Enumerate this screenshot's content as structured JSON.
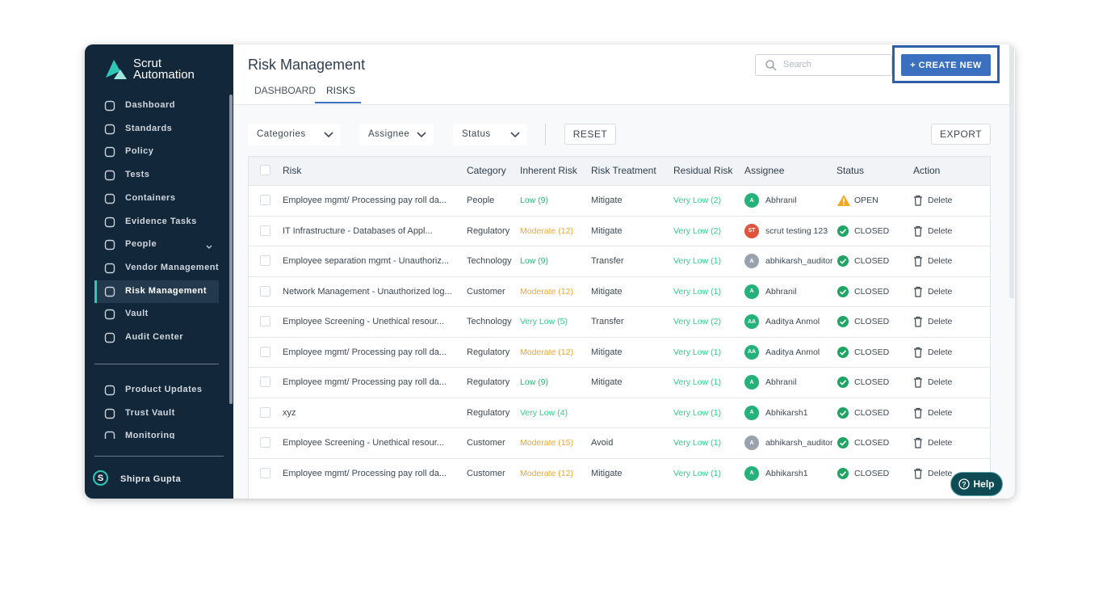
{
  "sidebar": {
    "brand": [
      "Scrut",
      "Automation"
    ],
    "nav": [
      "Dashboard",
      "Standards",
      "Policy",
      "Tests",
      "Containers",
      "Evidence Tasks",
      "People",
      "Vendor Management",
      "Risk Management",
      "Vault",
      "Audit Center"
    ],
    "active": 8,
    "nav_secondary": [
      "Product Updates",
      "Trust Vault",
      "Monitoring"
    ],
    "user": {
      "initial": "S",
      "name": "Shipra Gupta"
    }
  },
  "header": {
    "title": "Risk Management",
    "search_placeholder": "Search",
    "create_button": "+ CREATE NEW",
    "tabs": [
      "DASHBOARD",
      "RISKS"
    ],
    "active_tab": 1
  },
  "filters": {
    "dropdowns": [
      "Categories",
      "Assignee",
      "Status"
    ],
    "reset": "RESET",
    "export": "EXPORT"
  },
  "table": {
    "columns": [
      "Risk",
      "Category",
      "Inherent Risk",
      "Risk Treatment",
      "Residual Risk",
      "Assignee",
      "Status",
      "Action"
    ],
    "rows": [
      {
        "risk": "Employee mgmt/ Processing pay roll da...",
        "category": "People",
        "inherent": "Low (9)",
        "inherent_color": "#2bb673",
        "treatment": "Mitigate",
        "residual": "Very Low (2)",
        "residual_color": "#2bd18a",
        "avatar": "A",
        "avatar_color": "#25b17a",
        "assignee": "Abhranil",
        "status": "OPEN",
        "status_icon": "warning",
        "action": "Delete"
      },
      {
        "risk": "IT Infrastructure - Databases of Appl...",
        "category": "Regulatory",
        "inherent": "Moderate (12)",
        "inherent_color": "#f5a623",
        "treatment": "Mitigate",
        "residual": "Very Low (2)",
        "residual_color": "#2bd18a",
        "avatar": "ST",
        "avatar_color": "#e0533d",
        "assignee": "scrut testing 123",
        "status": "CLOSED",
        "status_icon": "check",
        "action": "Delete"
      },
      {
        "risk": "Employee separation mgmt - Unauthoriz...",
        "category": "Technology",
        "inherent": "Low (9)",
        "inherent_color": "#2bb673",
        "treatment": "Transfer",
        "residual": "Very Low (1)",
        "residual_color": "#2bd18a",
        "avatar": "A",
        "avatar_color": "#9aa3ad",
        "assignee": "abhikarsh_auditor",
        "status": "CLOSED",
        "status_icon": "check",
        "action": "Delete"
      },
      {
        "risk": "Network Management - Unauthorized log...",
        "category": "Customer",
        "inherent": "Moderate (12)",
        "inherent_color": "#f5a623",
        "treatment": "Mitigate",
        "residual": "Very Low (1)",
        "residual_color": "#2bd18a",
        "avatar": "A",
        "avatar_color": "#25b17a",
        "assignee": "Abhranil",
        "status": "CLOSED",
        "status_icon": "check",
        "action": "Delete"
      },
      {
        "risk": "Employee Screening - Unethical resour...",
        "category": "Technology",
        "inherent": "Very Low (5)",
        "inherent_color": "#2bd18a",
        "treatment": "Transfer",
        "residual": "Very Low (2)",
        "residual_color": "#2bd18a",
        "avatar": "AA",
        "avatar_color": "#25b17a",
        "assignee": "Aaditya Anmol",
        "status": "CLOSED",
        "status_icon": "check",
        "action": "Delete"
      },
      {
        "risk": "Employee mgmt/ Processing pay roll da...",
        "category": "Regulatory",
        "inherent": "Moderate (12)",
        "inherent_color": "#f5a623",
        "treatment": "Mitigate",
        "residual": "Very Low (1)",
        "residual_color": "#2bd18a",
        "avatar": "AA",
        "avatar_color": "#25b17a",
        "assignee": "Aaditya Anmol",
        "status": "CLOSED",
        "status_icon": "check",
        "action": "Delete"
      },
      {
        "risk": "Employee mgmt/ Processing pay roll da...",
        "category": "Regulatory",
        "inherent": "Low (9)",
        "inherent_color": "#2bb673",
        "treatment": "Mitigate",
        "residual": "Very Low (1)",
        "residual_color": "#2bd18a",
        "avatar": "A",
        "avatar_color": "#25b17a",
        "assignee": "Abhranil",
        "status": "CLOSED",
        "status_icon": "check",
        "action": "Delete"
      },
      {
        "risk": "xyz",
        "category": "Regulatory",
        "inherent": "Very Low (4)",
        "inherent_color": "#2bd18a",
        "treatment": "",
        "residual": "Very Low (1)",
        "residual_color": "#2bd18a",
        "avatar": "A",
        "avatar_color": "#25b17a",
        "assignee": "Abhikarsh1",
        "status": "CLOSED",
        "status_icon": "check",
        "action": "Delete"
      },
      {
        "risk": "Employee Screening - Unethical resour...",
        "category": "Customer",
        "inherent": "Moderate (15)",
        "inherent_color": "#f5a623",
        "treatment": "Avoid",
        "residual": "Very Low (1)",
        "residual_color": "#2bd18a",
        "avatar": "A",
        "avatar_color": "#9aa3ad",
        "assignee": "abhikarsh_auditor",
        "status": "CLOSED",
        "status_icon": "check",
        "action": "Delete"
      },
      {
        "risk": "Employee mgmt/ Processing pay roll da...",
        "category": "Customer",
        "inherent": "Moderate (12)",
        "inherent_color": "#f5a623",
        "treatment": "Mitigate",
        "residual": "Very Low (1)",
        "residual_color": "#2bd18a",
        "avatar": "A",
        "avatar_color": "#25b17a",
        "assignee": "Abhikarsh1",
        "status": "CLOSED",
        "status_icon": "check",
        "action": "Delete"
      }
    ]
  },
  "help": "Help"
}
